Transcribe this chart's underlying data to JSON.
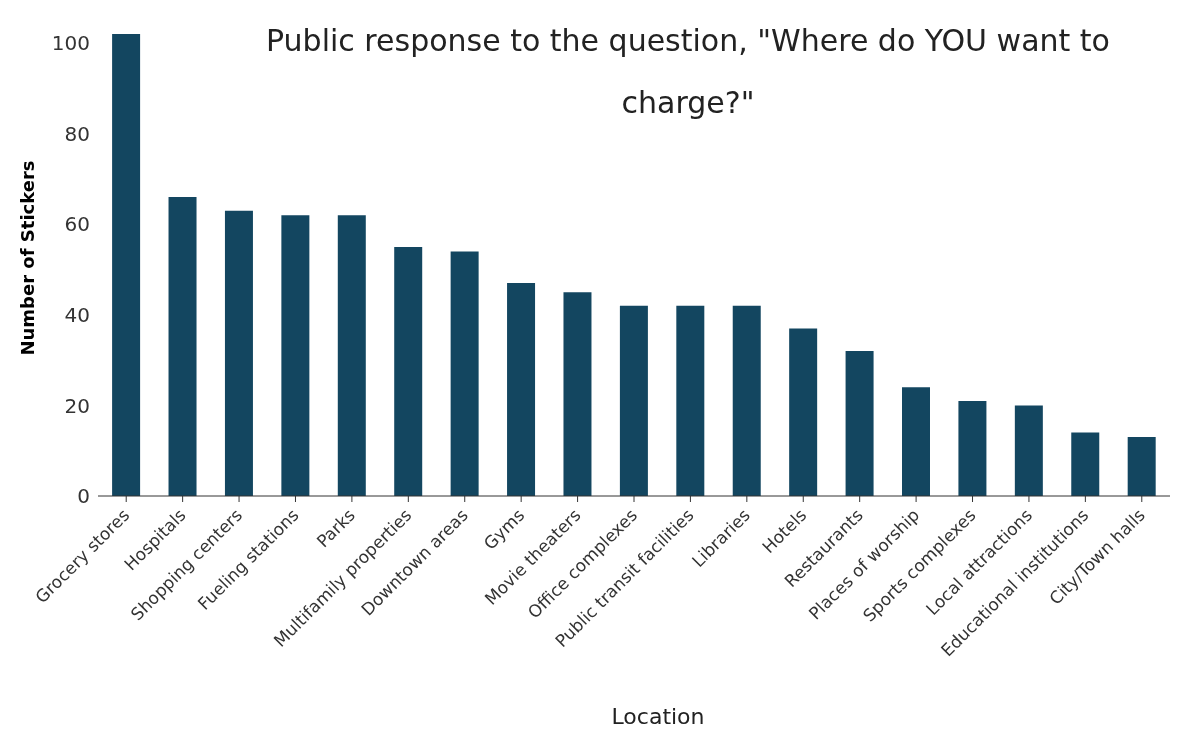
{
  "chart_data": {
    "type": "bar",
    "title": "Public response to the question, \"Where do YOU want to charge?\"",
    "xlabel": "Location",
    "ylabel": "Number of Stickers",
    "categories": [
      "Grocery stores",
      "Hospitals",
      "Shopping centers",
      "Fueling stations",
      "Parks",
      "Multifamily properties",
      "Downtown areas",
      "Gyms",
      "Movie theaters",
      "Office complexes",
      "Public transit facilities",
      "Libraries",
      "Hotels",
      "Restaurants",
      "Places of worship",
      "Sports complexes",
      "Local attractions",
      "Educational institutions",
      "City/Town halls"
    ],
    "values": [
      102,
      66,
      63,
      62,
      62,
      55,
      54,
      47,
      45,
      42,
      42,
      42,
      37,
      32,
      24,
      21,
      20,
      14,
      13
    ],
    "color": "#134660",
    "ylim": [
      0,
      102
    ],
    "yticks": [
      0,
      20,
      40,
      60,
      80,
      100
    ]
  }
}
